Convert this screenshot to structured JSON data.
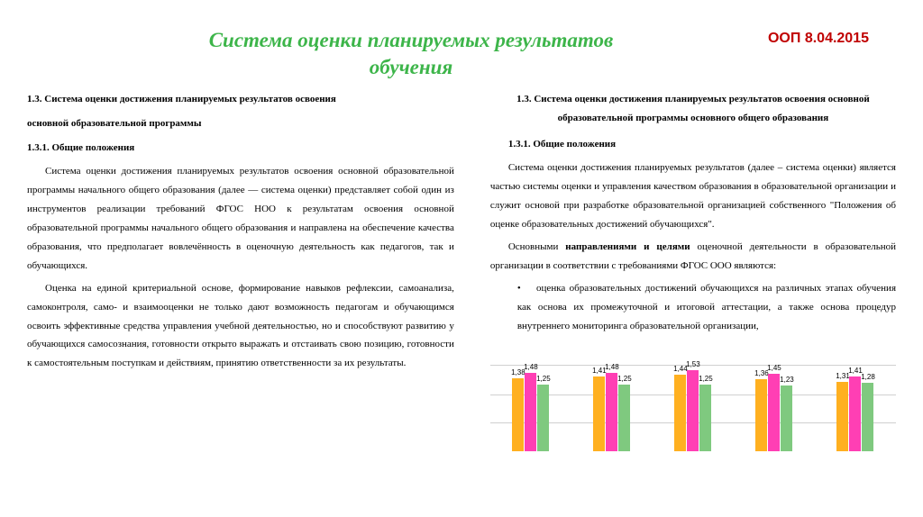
{
  "header": {
    "title_line1": "Система оценки планируемых результатов",
    "title_line2": "обучения",
    "date_label": "ООП 8.04.2015"
  },
  "left_column": {
    "heading": "1.3.   Система оценки достижения планируемых результатов освоения",
    "heading2": "основной образовательной программы",
    "sub_heading": "1.3.1. Общие положения",
    "para1": "Система оценки достижения планируемых результатов освоения основной образовательной программы начального общего образования (далее — система оценки) представляет собой один из инструментов реализации требований ФГОС НОО к результатам освоения основной образовательной программы начального общего образования и направлена на обеспечение качества образования, что предполагает вовлечённость в оценочную деятельность как педагогов, так и обучающихся.",
    "para2": "Оценка на единой критериальной основе, формирование навыков рефлексии, самоанализа, самоконтроля, само- и взаимооценки не только дают возможность педагогам и обучающимся освоить эффективные средства управления учебной деятельностью, но и способствуют развитию у обучающихся самосознания, готовности открыто выражать и отстаивать свою позицию, готовности к самостоятельным поступкам и действиям, принятию ответственности за их результаты."
  },
  "right_column": {
    "heading": "1.3. Система оценки достижения планируемых результатов освоения основной образовательной программы основного общего образования",
    "sub_heading": "1.3.1. Общие положения",
    "para1": "Система оценки достижения планируемых результатов (далее – система оценки) является частью системы оценки и управления качеством образования в образовательной организации и служит основой при разработке образовательной организацией собственного \"Положения об оценке образовательных достижений обучающихся\".",
    "para2_prefix": "Основными ",
    "para2_bold": "направлениями и целями",
    "para2_suffix": " оценочной деятельности в образовательной организации в соответствии с требованиями ФГОС ООО являются:",
    "bullet1": "оценка образовательных достижений обучающихся на различных этапах обучения как основа их промежуточной и итоговой аттестации, а также основа процедур внутреннего мониторинга образовательной организации,"
  },
  "chart": {
    "type": "bar",
    "colors": {
      "orange": "#ffb020",
      "pink": "#ff3fb4",
      "green": "#7fc97f",
      "gridline": "#d0d0d0",
      "background": "#ffffff"
    },
    "max_height_value": 1.6,
    "groups": [
      {
        "values": [
          1.38,
          1.48,
          1.25
        ]
      },
      {
        "values": [
          1.41,
          1.48,
          1.25
        ]
      },
      {
        "values": [
          1.44,
          1.53,
          1.25
        ]
      },
      {
        "values": [
          1.36,
          1.45,
          1.23
        ]
      },
      {
        "values": [
          1.31,
          1.41,
          1.28
        ]
      }
    ],
    "gridlines_at": [
      0.33,
      0.66,
      1.0
    ]
  }
}
